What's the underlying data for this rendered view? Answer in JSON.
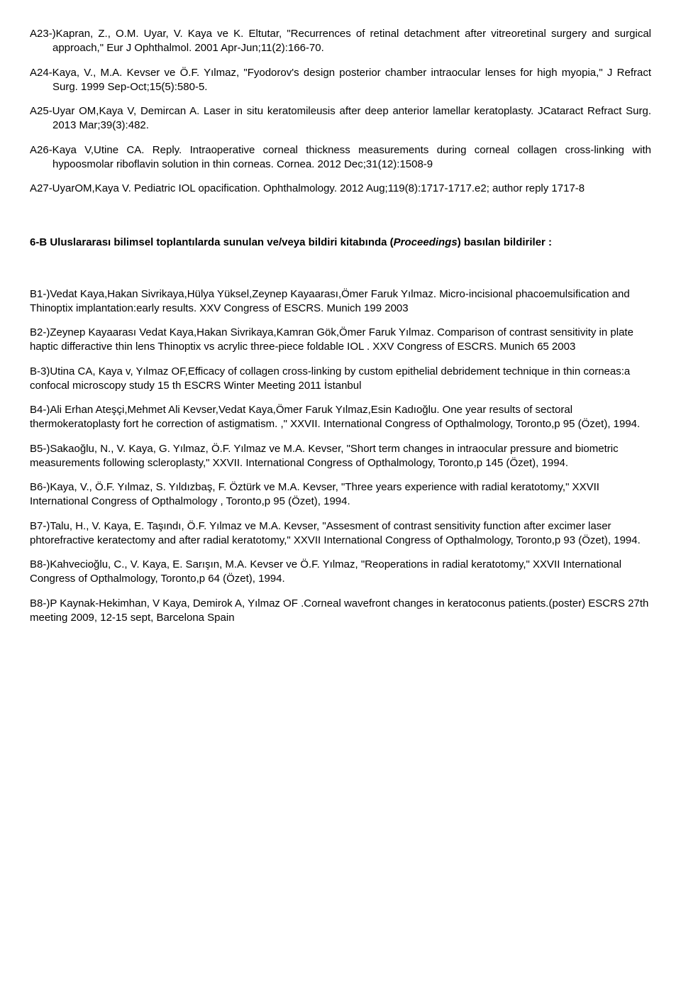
{
  "refs": {
    "a23": "A23-)Kapran, Z., O.M. Uyar, V. Kaya ve K. Eltutar, \"Recurrences of  retinal detachment after vitreoretinal surgery and surgical approach,\" Eur J Ophthalmol. 2001 Apr-Jun;11(2):166-70.",
    "a24": "A24-Kaya, V., M.A. Kevser ve Ö.F. Yılmaz, \"Fyodorov's design posterior chamber intraocular lenses for high myopia,\" J Refract Surg. 1999 Sep-Oct;15(5):580-5.",
    "a25": "A25-Uyar OM,Kaya V, Demircan A. Laser in situ keratomileusis after deep anterior lamellar keratoplasty. JCataract Refract Surg. 2013 Mar;39(3):482.",
    "a26": "A26-Kaya V,Utine CA. Reply. Intraoperative corneal thickness measurements during corneal collagen cross-linking with hypoosmolar riboflavin solution in thin corneas. Cornea. 2012 Dec;31(12):1508-9",
    "a27": "A27-UyarOM,Kaya V. Pediatric IOL opacification. Ophthalmology. 2012 Aug;119(8):1717-1717.e2; author reply 1717-8"
  },
  "section6b": {
    "prefix": "6-B Uluslararası bilimsel toplantılarda sunulan ve/veya bildiri kitabında (",
    "ital": "Proceedings",
    "suffix": ") basılan bildiriler :"
  },
  "b": {
    "b1": "B1-)Vedat Kaya,Hakan Sivrikaya,Hülya Yüksel,Zeynep Kayaarası,Ömer Faruk Yılmaz. Micro-incisional phacoemulsification and Thinoptix implantation:early results. XXV Congress of ESCRS. Munich 199 2003",
    "b2": "B2-)Zeynep Kayaarası Vedat Kaya,Hakan Sivrikaya,Kamran Gök,Ömer Faruk Yılmaz. Comparison of contrast sensitivity in plate haptic differactive thin lens Thinoptix vs acrylic three-piece foldable IOL . XXV Congress of ESCRS. Munich 65 2003",
    "b3": "B-3)Utina CA, Kaya v, Yılmaz OF,Efficacy of collagen cross-linking by custom epithelial debridement technique in thin corneas:a confocal microscopy study 15 th ESCRS Winter Meeting 2011 İstanbul",
    "b4": "B4-)Ali Erhan Ateşçi,Mehmet Ali Kevser,Vedat Kaya,Ömer Faruk Yılmaz,Esin Kadıoğlu. One year results of sectoral thermokeratoplasty fort he correction of astigmatism. ,\" XXVII. International Congress of Opthalmology, Toronto,p 95 (Özet), 1994.",
    "b5": "B5-)Sakaoğlu, N., V. Kaya, G. Yılmaz, Ö.F. Yılmaz ve M.A. Kevser, \"Short term changes in intraocular pressure and biometric measurements following scleroplasty,\" XXVII. International Congress of Opthalmology, Toronto,p 145 (Özet), 1994.",
    "b6": "B6-)Kaya, V., Ö.F. Yılmaz, S. Yıldızbaş, F. Öztürk ve M.A. Kevser, \"Three years experience with radial keratotomy,\" XXVII International Congress of Opthalmology , Toronto,p 95 (Özet), 1994.",
    "b7": "B7-)Talu, H.,  V. Kaya, E. Taşındı, Ö.F. Yılmaz ve  M.A. Kevser, \"Assesment of contrast sensitivity function after excimer laser phtorefractive  keratectomy and after radial keratotomy,\" XXVII International Congress of Opthalmology, Toronto,p 93 (Özet), 1994.",
    "b8": "B8-)Kahvecioğlu,  C., V. Kaya, E. Sarışın, M.A. Kevser ve Ö.F. Yılmaz, \"Reoperations in radial  keratotomy,\" XXVII International Congress of Opthalmology, Toronto,p 64 (Özet), 1994.",
    "b8b": "B8-)P Kaynak-Hekimhan, V Kaya, Demirok A, Yılmaz OF .Corneal wavefront changes in keratoconus patients.(poster) ESCRS  27th meeting 2009, 12-15 sept, Barcelona Spain"
  }
}
